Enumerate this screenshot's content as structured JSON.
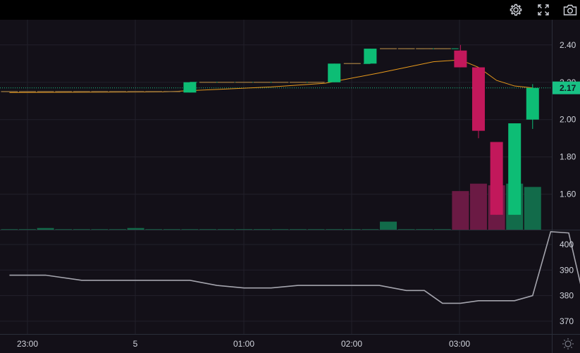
{
  "toolbar": {
    "icons": [
      "gear-icon",
      "fullscreen-icon",
      "camera-icon"
    ]
  },
  "colors": {
    "background": "#131018",
    "grid": "#221f2a",
    "up": "#0dbd75",
    "down": "#c2185b",
    "vol_up": "#126b4a",
    "vol_down": "#6b1a44",
    "ma": "#e89a1c",
    "dashed": "#10b273",
    "indicator": "#a4a4ad",
    "last_price_bg": "#18c184"
  },
  "chart_data": {
    "type": "candlestick",
    "x_ticks": [
      "23:00",
      "5",
      "01:00",
      "02:00",
      "03:00"
    ],
    "price_ticks": [
      "2.40",
      "2.20",
      "2.00",
      "1.80",
      "1.60"
    ],
    "price_range": [
      1.41,
      2.52
    ],
    "last_price": "2.17",
    "candles": [
      {
        "t": -0.333,
        "o": 2.15,
        "h": 2.15,
        "l": 2.15,
        "c": 2.15
      },
      {
        "t": 0.0,
        "o": 2.15,
        "h": 2.15,
        "l": 2.15,
        "c": 2.15
      },
      {
        "t": 0.333,
        "o": 2.15,
        "h": 2.15,
        "l": 2.15,
        "c": 2.15
      },
      {
        "t": 0.667,
        "o": 2.15,
        "h": 2.15,
        "l": 2.15,
        "c": 2.15
      },
      {
        "t": 1.0,
        "o": 2.15,
        "h": 2.15,
        "l": 2.15,
        "c": 2.15
      },
      {
        "t": 1.333,
        "o": 2.15,
        "h": 2.15,
        "l": 2.15,
        "c": 2.15
      },
      {
        "t": 1.667,
        "o": 2.15,
        "h": 2.15,
        "l": 2.15,
        "c": 2.15
      },
      {
        "t": 2.0,
        "o": 2.15,
        "h": 2.15,
        "l": 2.15,
        "c": 2.15
      },
      {
        "t": 2.333,
        "o": 2.15,
        "h": 2.15,
        "l": 2.15,
        "c": 2.15
      },
      {
        "t": 2.667,
        "o": 2.15,
        "h": 2.15,
        "l": 2.15,
        "c": 2.15
      },
      {
        "t": 3.0,
        "o": 2.145,
        "h": 2.2,
        "l": 2.145,
        "c": 2.2
      },
      {
        "t": 3.333,
        "o": 2.2,
        "h": 2.2,
        "l": 2.2,
        "c": 2.2
      },
      {
        "t": 3.667,
        "o": 2.2,
        "h": 2.2,
        "l": 2.2,
        "c": 2.2
      },
      {
        "t": 4.0,
        "o": 2.2,
        "h": 2.2,
        "l": 2.2,
        "c": 2.2
      },
      {
        "t": 4.333,
        "o": 2.2,
        "h": 2.2,
        "l": 2.2,
        "c": 2.2
      },
      {
        "t": 4.667,
        "o": 2.2,
        "h": 2.2,
        "l": 2.2,
        "c": 2.2
      },
      {
        "t": 5.0,
        "o": 2.2,
        "h": 2.2,
        "l": 2.2,
        "c": 2.2
      },
      {
        "t": 5.333,
        "o": 2.2,
        "h": 2.2,
        "l": 2.2,
        "c": 2.2
      },
      {
        "t": 5.667,
        "o": 2.2,
        "h": 2.3,
        "l": 2.2,
        "c": 2.3
      },
      {
        "t": 6.0,
        "o": 2.3,
        "h": 2.3,
        "l": 2.3,
        "c": 2.3
      },
      {
        "t": 6.333,
        "o": 2.3,
        "h": 2.38,
        "l": 2.3,
        "c": 2.38
      },
      {
        "t": 6.667,
        "o": 2.38,
        "h": 2.38,
        "l": 2.38,
        "c": 2.38
      },
      {
        "t": 7.0,
        "o": 2.38,
        "h": 2.38,
        "l": 2.38,
        "c": 2.38
      },
      {
        "t": 7.333,
        "o": 2.38,
        "h": 2.38,
        "l": 2.38,
        "c": 2.38
      },
      {
        "t": 7.667,
        "o": 2.38,
        "h": 2.38,
        "l": 2.38,
        "c": 2.38
      },
      {
        "t": 8.0,
        "o": 2.37,
        "h": 2.4,
        "l": 2.28,
        "c": 2.28
      },
      {
        "t": 8.333,
        "o": 2.28,
        "h": 2.28,
        "l": 1.9,
        "c": 1.94
      },
      {
        "t": 8.667,
        "o": 1.88,
        "h": 1.88,
        "l": 1.49,
        "c": 1.49
      },
      {
        "t": 9.0,
        "o": 1.49,
        "h": 1.98,
        "l": 1.49,
        "c": 1.98
      },
      {
        "t": 9.333,
        "o": 2.0,
        "h": 2.19,
        "l": 1.95,
        "c": 2.17
      }
    ],
    "volume": [
      0,
      0,
      1,
      0,
      0,
      0,
      0,
      1,
      0,
      0,
      0,
      0,
      0,
      0,
      0,
      0,
      0,
      0,
      0,
      0,
      0,
      4.9,
      0,
      0,
      0,
      23.5,
      28,
      27,
      28,
      26
    ],
    "volume_max": 30,
    "ma": [
      [
        -0.333,
        2.145
      ],
      [
        2.5,
        2.148
      ],
      [
        3.0,
        2.155
      ],
      [
        4.5,
        2.175
      ],
      [
        5.5,
        2.195
      ],
      [
        6.5,
        2.25
      ],
      [
        7.5,
        2.31
      ],
      [
        8.0,
        2.32
      ],
      [
        8.333,
        2.28
      ],
      [
        8.667,
        2.21
      ],
      [
        9.0,
        2.18
      ],
      [
        9.333,
        2.17
      ]
    ],
    "dashed_segments": [
      [
        [
          3.0,
          2.2
        ],
        [
          5.5,
          2.2
        ]
      ],
      [
        [
          6.0,
          2.3
        ],
        [
          6.333,
          2.3
        ]
      ],
      [
        [
          7.0,
          2.38
        ],
        [
          8.0,
          2.38
        ]
      ]
    ],
    "indicator": {
      "ticks": [
        "400",
        "390",
        "380",
        "370"
      ],
      "range": [
        365,
        405.5
      ],
      "points": [
        [
          -0.333,
          388
        ],
        [
          0.333,
          388
        ],
        [
          1.0,
          386
        ],
        [
          2.0,
          386
        ],
        [
          3.0,
          386
        ],
        [
          3.5,
          384
        ],
        [
          4.0,
          383
        ],
        [
          4.5,
          383
        ],
        [
          5.0,
          384
        ],
        [
          6.5,
          384
        ],
        [
          7.0,
          382
        ],
        [
          7.333,
          382
        ],
        [
          7.667,
          377
        ],
        [
          8.0,
          377
        ],
        [
          8.333,
          378
        ],
        [
          8.667,
          378
        ],
        [
          9.0,
          378
        ],
        [
          9.333,
          380
        ],
        [
          9.667,
          405
        ],
        [
          10.0,
          404.5
        ],
        [
          10.333,
          374
        ],
        [
          10.667,
          369
        ]
      ]
    }
  }
}
